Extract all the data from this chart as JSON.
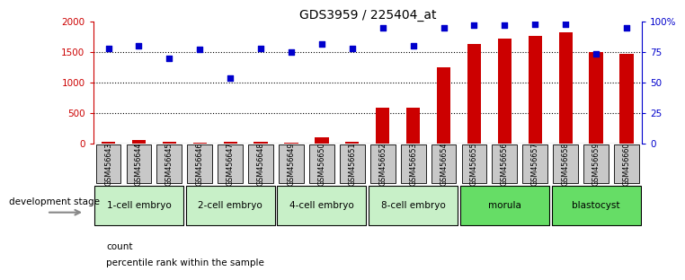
{
  "title": "GDS3959 / 225404_at",
  "samples": [
    "GSM456643",
    "GSM456644",
    "GSM456645",
    "GSM456646",
    "GSM456647",
    "GSM456648",
    "GSM456649",
    "GSM456650",
    "GSM456651",
    "GSM456652",
    "GSM456653",
    "GSM456654",
    "GSM456655",
    "GSM456656",
    "GSM456657",
    "GSM456658",
    "GSM456659",
    "GSM456660"
  ],
  "counts": [
    30,
    70,
    30,
    25,
    30,
    30,
    25,
    110,
    40,
    590,
    590,
    1250,
    1640,
    1720,
    1760,
    1830,
    1500,
    1480
  ],
  "percentiles": [
    78,
    80,
    70,
    77,
    54,
    78,
    75,
    82,
    78,
    95,
    80,
    95,
    97,
    97,
    98,
    98,
    74,
    95
  ],
  "stages": [
    {
      "label": "1-cell embryo",
      "start": 0,
      "end": 3
    },
    {
      "label": "2-cell embryo",
      "start": 3,
      "end": 6
    },
    {
      "label": "4-cell embryo",
      "start": 6,
      "end": 9
    },
    {
      "label": "8-cell embryo",
      "start": 9,
      "end": 12
    },
    {
      "label": "morula",
      "start": 12,
      "end": 15
    },
    {
      "label": "blastocyst",
      "start": 15,
      "end": 18
    }
  ],
  "stage_colors": [
    "#c8f0c8",
    "#c8f0c8",
    "#c8f0c8",
    "#c8f0c8",
    "#66dd66",
    "#66dd66"
  ],
  "bar_color": "#CC0000",
  "dot_color": "#0000CC",
  "ylim_left": [
    0,
    2000
  ],
  "ylim_right": [
    0,
    100
  ],
  "yticks_left": [
    0,
    500,
    1000,
    1500,
    2000
  ],
  "yticks_right": [
    0,
    25,
    50,
    75,
    100
  ],
  "ytick_labels_left": [
    "0",
    "500",
    "1000",
    "1500",
    "2000"
  ],
  "ytick_labels_right": [
    "0",
    "25",
    "50",
    "75",
    "100%"
  ],
  "background_color": "#ffffff",
  "stage_header": "development stage",
  "sample_box_color": "#C8C8C8",
  "title_fontsize": 10
}
